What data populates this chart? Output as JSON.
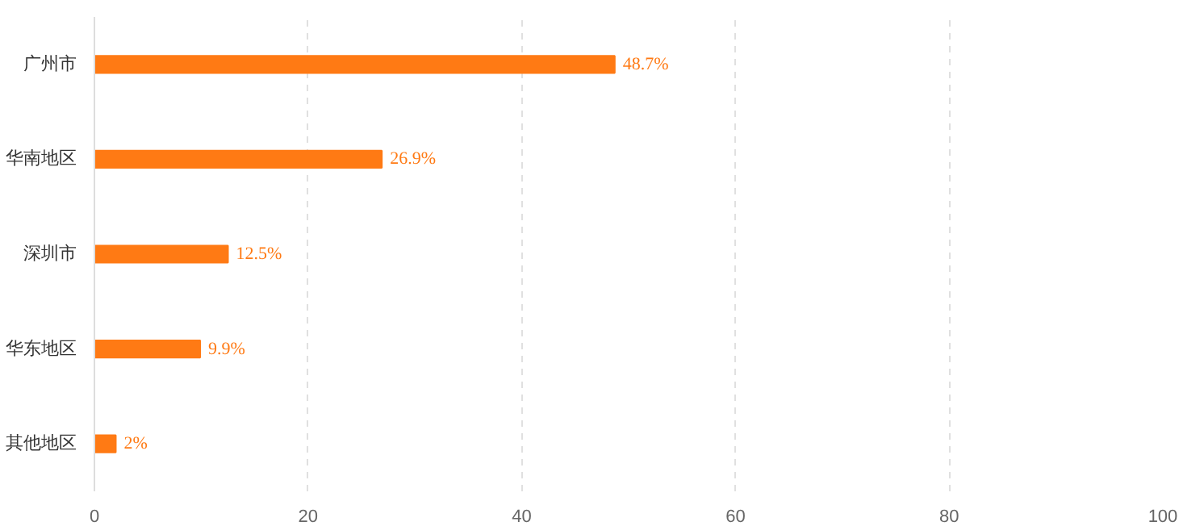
{
  "chart_data": {
    "type": "bar",
    "orientation": "horizontal",
    "categories": [
      "广州市",
      "华南地区",
      "深圳市",
      "华东地区",
      "其他地区"
    ],
    "values": [
      48.7,
      26.9,
      12.5,
      9.9,
      2
    ],
    "value_labels": [
      "48.7%",
      "26.9%",
      "12.5%",
      "9.9%",
      "2%"
    ],
    "color": "#ff7a14",
    "xlim": [
      0,
      100
    ],
    "xticks": [
      0,
      20,
      40,
      60,
      80,
      100
    ],
    "grid": "x"
  }
}
